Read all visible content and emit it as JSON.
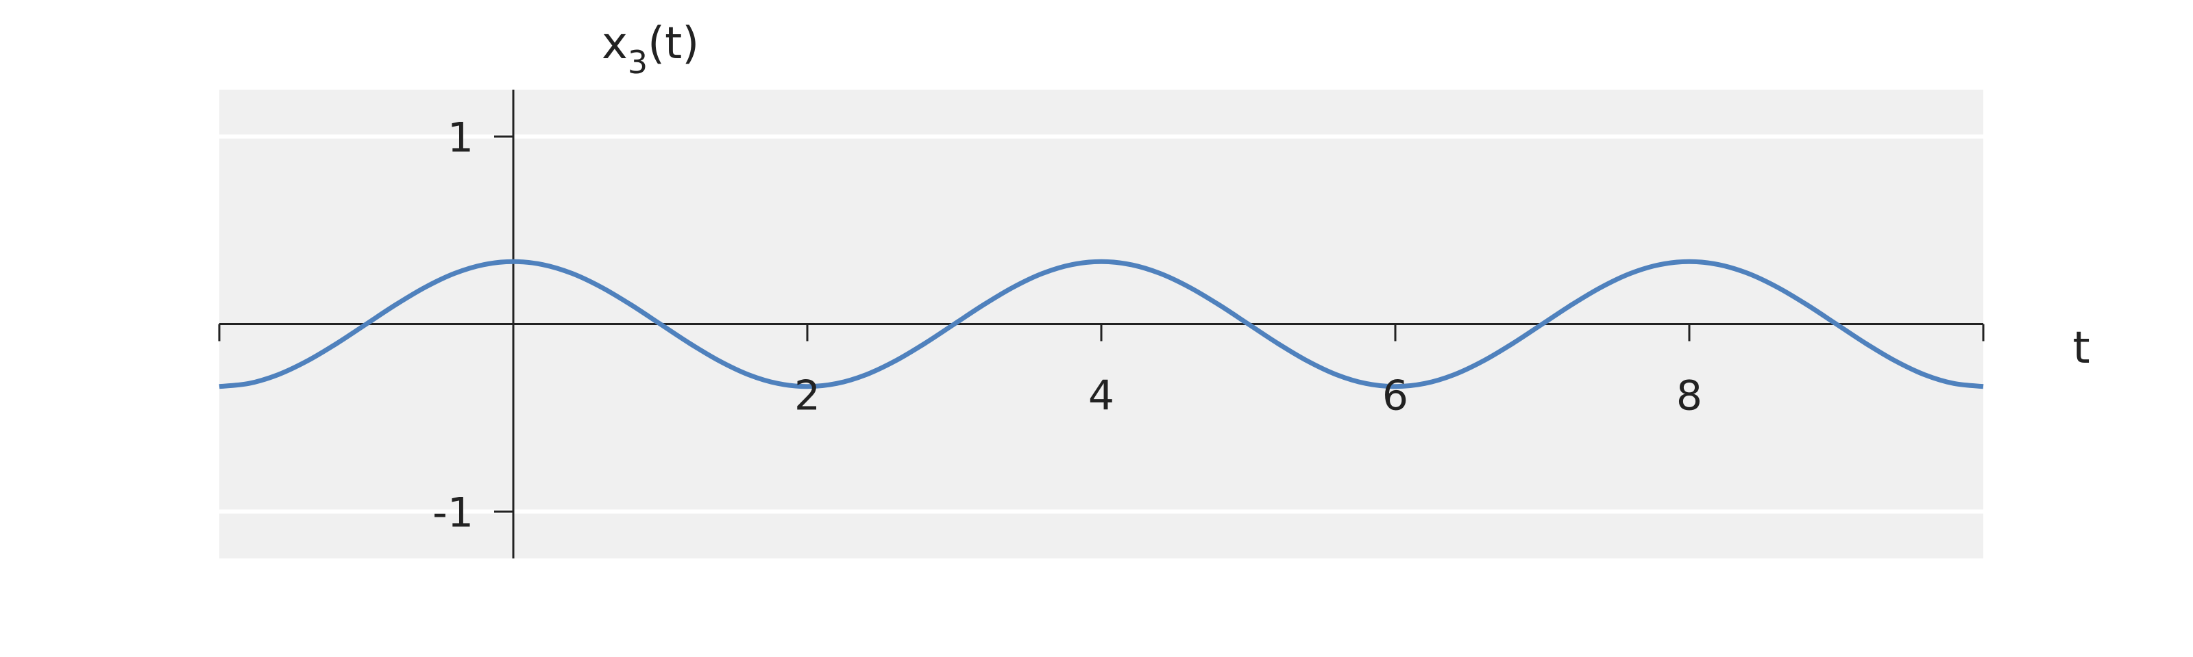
{
  "chart_data": {
    "type": "line",
    "title": "",
    "xlabel": "t",
    "ylabel": "x",
    "ylabel_subscript": "3",
    "ylabel_suffix": "(t)",
    "xlim": [
      -2,
      10
    ],
    "ylim": [
      -1.25,
      1.25
    ],
    "xticks": [
      -2,
      0,
      2,
      4,
      6,
      8,
      10
    ],
    "xtick_labels": [
      {
        "value": 2,
        "label": "2"
      },
      {
        "value": 4,
        "label": "4"
      },
      {
        "value": 6,
        "label": "6"
      },
      {
        "value": 8,
        "label": "8"
      }
    ],
    "ytick_labels": [
      {
        "value": 1,
        "label": "1"
      },
      {
        "value": -1,
        "label": "-1"
      }
    ],
    "grid": "horizontal at y = ±1",
    "colors": {
      "background": "#f0f0f0",
      "line": "#4f81bd",
      "axis": "#222222",
      "grid": "#ffffff"
    },
    "series": [
      {
        "x": [
          -2,
          -1.8,
          -1.6,
          -1.4,
          -1.2,
          -1,
          -0.8,
          -0.6,
          -0.4,
          -0.2,
          0,
          0.2,
          0.4,
          0.6,
          0.8,
          1,
          1.2,
          1.4,
          1.6,
          1.8,
          2,
          2.2,
          2.4,
          2.6,
          2.8,
          3,
          3.2,
          3.4,
          3.6,
          3.8,
          4,
          4.2,
          4.4,
          4.6,
          4.8,
          5,
          5.2,
          5.4,
          5.6,
          5.8,
          6,
          6.2,
          6.4,
          6.6,
          6.8,
          7,
          7.2,
          7.4,
          7.6,
          7.8,
          8,
          8.2,
          8.4,
          8.6,
          8.8,
          9,
          9.2,
          9.4,
          9.6,
          9.8,
          10
        ],
        "y": [
          -0.333,
          -0.317,
          -0.27,
          -0.196,
          -0.103,
          0,
          0.103,
          0.196,
          0.27,
          0.317,
          0.333,
          0.317,
          0.27,
          0.196,
          0.103,
          0,
          -0.103,
          -0.196,
          -0.27,
          -0.317,
          -0.333,
          -0.317,
          -0.27,
          -0.196,
          -0.103,
          0,
          0.103,
          0.196,
          0.27,
          0.317,
          0.333,
          0.317,
          0.27,
          0.196,
          0.103,
          0,
          -0.103,
          -0.196,
          -0.27,
          -0.317,
          -0.333,
          -0.317,
          -0.27,
          -0.196,
          -0.103,
          0,
          0.103,
          0.196,
          0.27,
          0.317,
          0.333,
          0.317,
          0.27,
          0.196,
          0.103,
          0,
          -0.103,
          -0.196,
          -0.27,
          -0.317,
          -0.333
        ]
      }
    ]
  }
}
